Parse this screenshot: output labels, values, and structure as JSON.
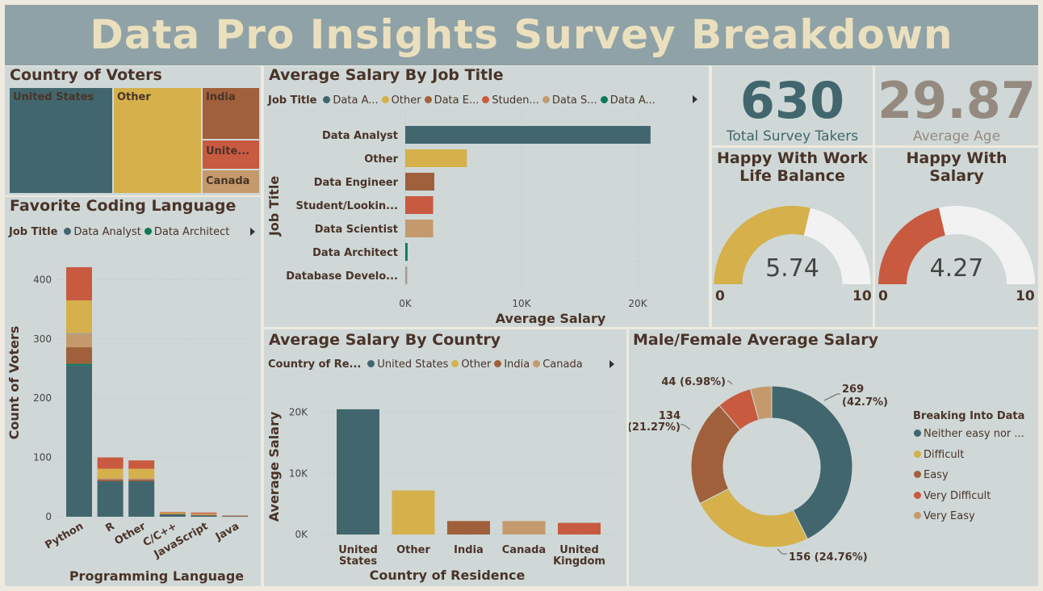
{
  "title": "Data Pro Insights Survey Breakdown",
  "colors": {
    "teal": "#41666e",
    "gold": "#d5b04b",
    "brown": "#a0603b",
    "red": "#c85a40",
    "tan": "#c49a6c",
    "green": "#0e7a57",
    "gray": "#a59e95",
    "title_bg": "#8fa2a7",
    "panel_bg": "#cfd8d7",
    "title_text": "#ebe0be",
    "kpi_teal": "#41666e",
    "kpi_gray": "#958a80"
  },
  "country_of_voters": {
    "title": "Country of Voters",
    "cells": [
      {
        "label": "United States",
        "color": "teal"
      },
      {
        "label": "Other",
        "color": "gold"
      },
      {
        "label": "India",
        "color": "brown"
      },
      {
        "label": "Unite...",
        "color": "red"
      },
      {
        "label": "Canada",
        "color": "tan"
      }
    ]
  },
  "kpis": {
    "survey_takers": {
      "value": "630",
      "label": "Total Survey Takers"
    },
    "average_age": {
      "value": "29.87",
      "label": "Average Age"
    }
  },
  "gauges": [
    {
      "title_line1": "Happy With Work",
      "title_line2": "Life Balance",
      "value": 5.74,
      "value_text": "5.74",
      "min": "0",
      "max": "10",
      "color": "gold"
    },
    {
      "title_line1": "Happy With",
      "title_line2": "Salary",
      "value": 4.27,
      "value_text": "4.27",
      "min": "0",
      "max": "10",
      "color": "red"
    }
  ],
  "chart_data": [
    {
      "id": "favorite_coding_language",
      "type": "bar",
      "stacked": true,
      "title": "Favorite Coding Language",
      "legend_title": "Job Title",
      "legend_items": [
        {
          "name": "Data Analyst",
          "color": "teal"
        },
        {
          "name": "Data Architect",
          "color": "green"
        }
      ],
      "xlabel": "Programming Language",
      "ylabel": "Count of Voters",
      "ylim": [
        0,
        440
      ],
      "yticks": [
        0,
        100,
        200,
        300,
        400
      ],
      "categories": [
        "Python",
        "R",
        "Other",
        "C/C++",
        "JavaScript",
        "Java"
      ],
      "series": [
        {
          "name": "Data Analyst",
          "color": "teal",
          "values": [
            255,
            60,
            60,
            4,
            2,
            1
          ]
        },
        {
          "name": "Data Architect",
          "color": "green",
          "values": [
            3,
            0,
            0,
            0,
            0,
            0
          ]
        },
        {
          "color": "brown",
          "values": [
            28,
            3,
            3,
            1,
            1,
            0
          ]
        },
        {
          "color": "tan",
          "values": [
            22,
            2,
            2,
            0,
            1,
            0
          ]
        },
        {
          "color": "gray",
          "values": [
            2,
            0,
            0,
            0,
            0,
            0
          ]
        },
        {
          "color": "gold",
          "values": [
            55,
            16,
            16,
            2,
            1,
            0
          ]
        },
        {
          "color": "red",
          "values": [
            56,
            19,
            14,
            1,
            2,
            1
          ]
        }
      ]
    },
    {
      "id": "avg_salary_by_job_title",
      "type": "bar",
      "orientation": "horizontal",
      "title": "Average Salary By Job Title",
      "legend_title": "Job Title",
      "legend_items": [
        {
          "name": "Data A...",
          "color": "teal"
        },
        {
          "name": "Other",
          "color": "gold"
        },
        {
          "name": "Data E...",
          "color": "brown"
        },
        {
          "name": "Studen...",
          "color": "red"
        },
        {
          "name": "Data S...",
          "color": "tan"
        },
        {
          "name": "Data A...",
          "color": "green"
        }
      ],
      "xlabel": "Average Salary",
      "ylabel": "Job Title",
      "xlim": [
        0,
        25000
      ],
      "xticks": [
        {
          "v": 0,
          "label": "0K"
        },
        {
          "v": 10000,
          "label": "10K"
        },
        {
          "v": 20000,
          "label": "20K"
        }
      ],
      "categories": [
        "Data Analyst",
        "Other",
        "Data Engineer",
        "Student/Lookin...",
        "Data Scientist",
        "Data Architect",
        "Database Develo..."
      ],
      "values": [
        21100,
        5300,
        2500,
        2400,
        2400,
        200,
        150
      ],
      "colors": [
        "teal",
        "gold",
        "brown",
        "red",
        "tan",
        "green",
        "gray"
      ]
    },
    {
      "id": "avg_salary_by_country",
      "type": "bar",
      "title": "Average Salary By Country",
      "legend_title": "Country of Re...",
      "legend_items": [
        {
          "name": "United States",
          "color": "teal"
        },
        {
          "name": "Other",
          "color": "gold"
        },
        {
          "name": "India",
          "color": "brown"
        },
        {
          "name": "Canada",
          "color": "tan"
        }
      ],
      "xlabel": "Country of Residence",
      "ylabel": "Average Salary",
      "ylim": [
        0,
        23000
      ],
      "yticks": [
        {
          "v": 0,
          "label": "0K"
        },
        {
          "v": 10000,
          "label": "10K"
        },
        {
          "v": 20000,
          "label": "20K"
        }
      ],
      "categories": [
        [
          "United",
          "States"
        ],
        [
          "Other"
        ],
        [
          "India"
        ],
        [
          "Canada"
        ],
        [
          "United",
          "Kingdom"
        ]
      ],
      "values": [
        20500,
        7200,
        2200,
        2200,
        1900
      ],
      "colors": [
        "teal",
        "gold",
        "brown",
        "tan",
        "red"
      ]
    },
    {
      "id": "male_female_avg_salary",
      "type": "pie",
      "donut": true,
      "title": "Male/Female Average Salary",
      "legend_title": "Breaking Into Data",
      "slices": [
        {
          "name": "Neither easy nor ...",
          "value": 269,
          "label1": "269",
          "label2": "(42.7%)",
          "color": "teal"
        },
        {
          "name": "Difficult",
          "value": 156,
          "label1": "156 (24.76%)",
          "color": "gold"
        },
        {
          "name": "Easy",
          "value": 134,
          "label1": "134",
          "label2": "(21.27%)",
          "color": "brown"
        },
        {
          "name": "Very Difficult",
          "value": 44,
          "label1": "44 (6.98%)",
          "color": "red"
        },
        {
          "name": "Very Easy",
          "value": 27,
          "color": "tan"
        }
      ]
    }
  ]
}
